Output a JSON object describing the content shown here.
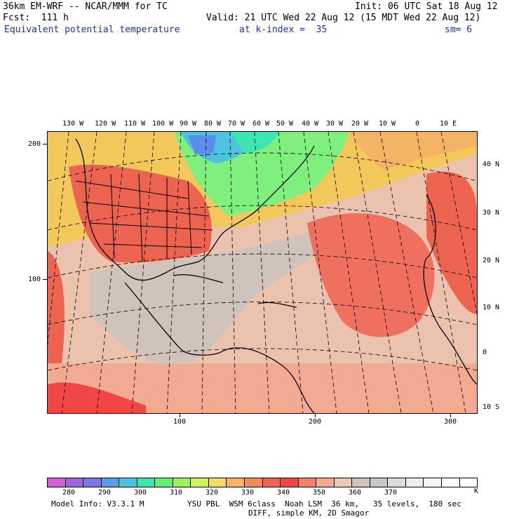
{
  "header": {
    "line1_left": "36km EM-WRF -- NCAR/MMM for TC",
    "line1_right": "Init: 06 UTC Sat 18 Aug 12",
    "line2_left": "Fcst:  111 h",
    "line2_right": "Valid: 21 UTC Wed 22 Aug 12 (15 MDT Wed 22 Aug 12)",
    "field_label": "Equivalent potential temperature",
    "level_label": "at k-index =  35",
    "smooth_label": "sm= 6"
  },
  "map": {
    "longitude_labels": [
      "130 W",
      "120 W",
      "110 W",
      "100 W",
      "90 W",
      "80 W",
      "70 W",
      "60 W",
      "50 W",
      "40 W",
      "30 W",
      "20 W",
      "10 W",
      "0",
      "10 E"
    ],
    "latitude_labels": [
      "40 N",
      "30 N",
      "20 N",
      "10 N",
      "0",
      "10 S"
    ],
    "y_axis_labels": [
      "200",
      "100"
    ],
    "x_axis_labels": [
      "100",
      "200",
      "300"
    ]
  },
  "colorbar": {
    "colors": [
      "#d45fd4",
      "#a064dc",
      "#7b78e6",
      "#5a9bea",
      "#4cc4e0",
      "#3ce6b0",
      "#5ef07a",
      "#9cf05c",
      "#d2f05a",
      "#f4dc6a",
      "#f4b464",
      "#f08c5a",
      "#ec6450",
      "#f04646",
      "#f0826e",
      "#f2aa92",
      "#e8c8b4",
      "#cfc3bb",
      "#c8c8cc",
      "#dcdcdc",
      "#ececec",
      "#f6f6f6",
      "#ffffff",
      "#ffffff"
    ],
    "tick_labels": [
      "280",
      "290",
      "300",
      "310",
      "320",
      "330",
      "340",
      "350",
      "360",
      "370"
    ],
    "units": "K"
  },
  "footer": {
    "line1_left": "Model Info: V3.3.1 M",
    "line1_right": "YSU PBL  WSM 6class  Noah LSM  36 km,   35 levels,  180 sec",
    "line2": "DIFF, simple KM, 2D Smagor"
  }
}
